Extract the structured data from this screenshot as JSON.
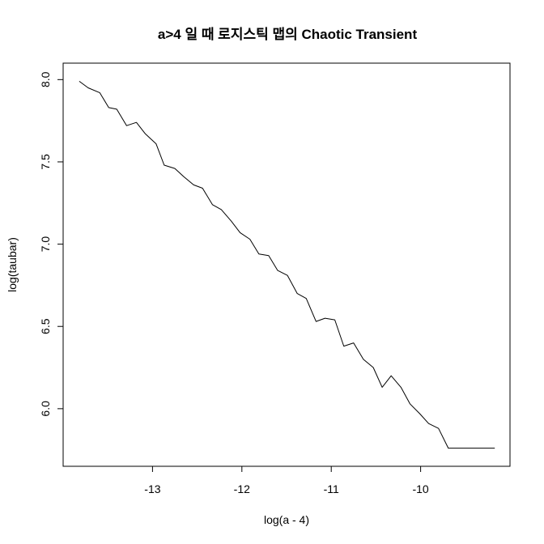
{
  "chart_data": {
    "type": "line",
    "title": "a>4 일 때 로지스틱 맵의 Chaotic Transient",
    "xlabel": "log(a - 4)",
    "ylabel": "log(taubar)",
    "xlim": [
      -14.0,
      -9.0
    ],
    "ylim": [
      5.65,
      8.1
    ],
    "xticks": [
      -13,
      -12,
      -11,
      -10
    ],
    "xtick_labels": [
      "-13",
      "-12",
      "-11",
      "-10"
    ],
    "yticks": [
      6.0,
      6.5,
      7.0,
      7.5,
      8.0
    ],
    "ytick_labels": [
      "6.0",
      "6.5",
      "7.0",
      "7.5",
      "8.0"
    ],
    "grid": false,
    "series": [
      {
        "color": "#000000",
        "x": [
          -13.82,
          -13.72,
          -13.59,
          -13.49,
          -13.4,
          -13.29,
          -13.18,
          -13.08,
          -12.96,
          -12.87,
          -12.75,
          -12.65,
          -12.54,
          -12.44,
          -12.33,
          -12.23,
          -12.12,
          -12.02,
          -11.91,
          -11.81,
          -11.7,
          -11.6,
          -11.49,
          -11.38,
          -11.28,
          -11.17,
          -11.07,
          -10.96,
          -10.86,
          -10.75,
          -10.64,
          -10.53,
          -10.43,
          -10.33,
          -10.22,
          -10.12,
          -10.01,
          -9.91,
          -9.8,
          -9.69,
          -9.59,
          -9.48,
          -9.38,
          -9.27,
          -9.17
        ],
        "y": [
          7.99,
          7.95,
          7.92,
          7.83,
          7.82,
          7.72,
          7.74,
          7.67,
          7.61,
          7.48,
          7.46,
          7.41,
          7.36,
          7.34,
          7.24,
          7.21,
          7.14,
          7.07,
          7.03,
          6.94,
          6.93,
          6.84,
          6.81,
          6.7,
          6.67,
          6.53,
          6.55,
          6.54,
          6.38,
          6.4,
          6.3,
          6.25,
          6.13,
          6.2,
          6.13,
          6.03,
          5.97,
          5.91,
          5.88,
          5.76,
          5.76,
          5.76,
          5.76,
          5.76,
          5.76
        ]
      }
    ]
  }
}
